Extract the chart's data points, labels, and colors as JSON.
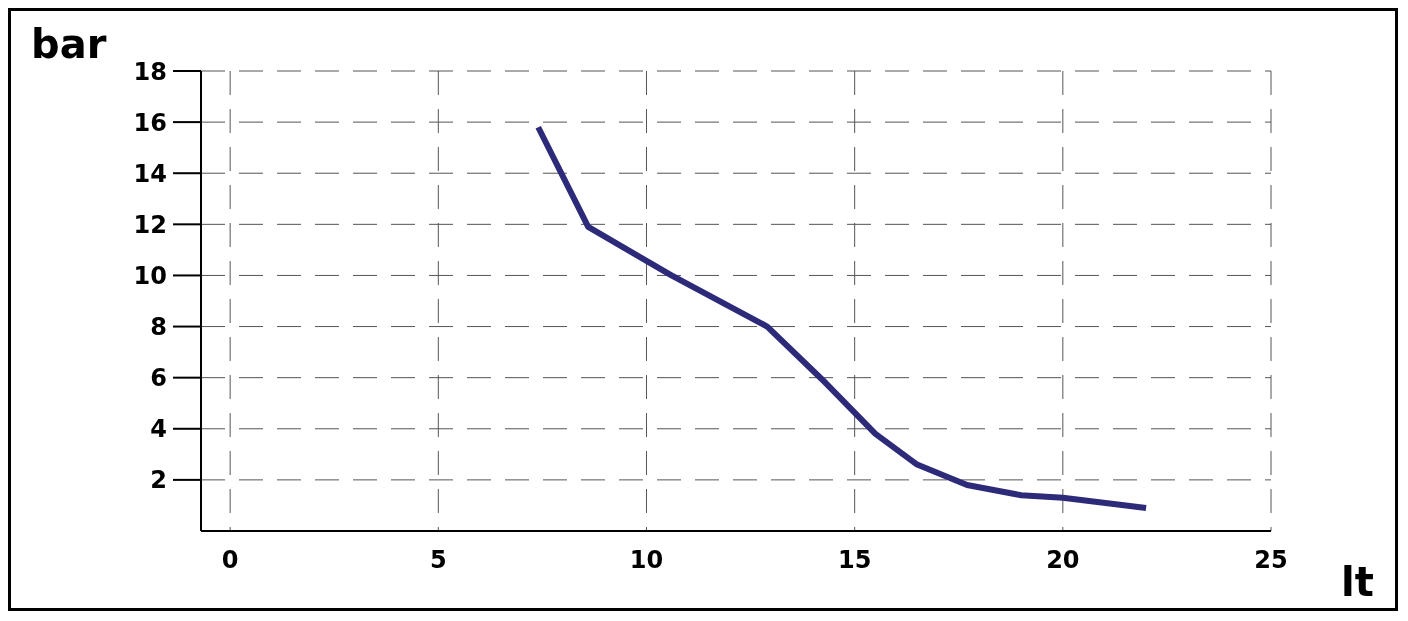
{
  "chart_data": {
    "type": "line",
    "xlabel": "lt",
    "ylabel": "bar",
    "x": [
      7.4,
      8.6,
      10.6,
      12.9,
      14.3,
      15.5,
      16.5,
      17.7,
      19.0,
      20.0,
      22.0
    ],
    "series": [
      {
        "color": "#2e2a7a",
        "values": [
          15.8,
          11.9,
          10.0,
          8.0,
          5.8,
          3.8,
          2.6,
          1.8,
          1.4,
          1.3,
          0.9
        ]
      }
    ],
    "xlim": [
      -0.7,
      25
    ],
    "xticks": [
      0,
      5,
      10,
      15,
      20,
      25
    ],
    "ylim": [
      0,
      18
    ],
    "yticks": [
      2,
      4,
      6,
      8,
      10,
      12,
      14,
      16,
      18
    ],
    "grid": true,
    "marker": "none",
    "line_style": "solid"
  }
}
